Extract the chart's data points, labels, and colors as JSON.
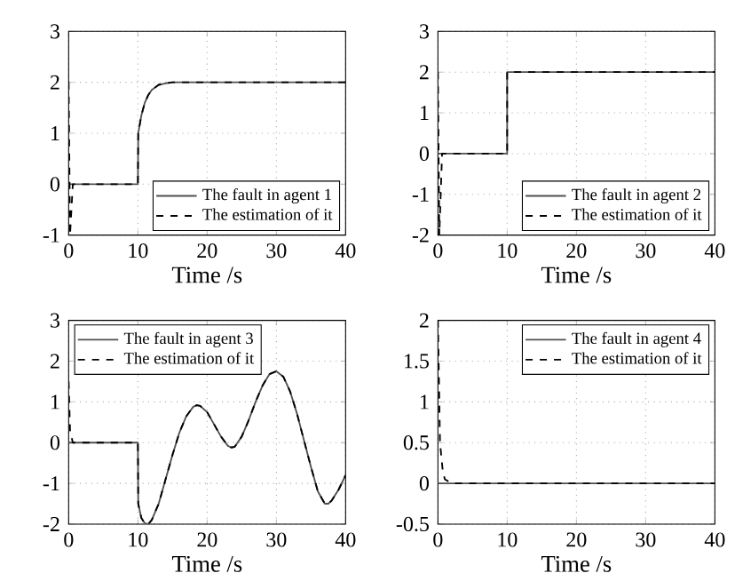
{
  "chart_data": [
    {
      "type": "line",
      "xlabel": "Time /s",
      "xlim": [
        0,
        40
      ],
      "ylim": [
        -1,
        3
      ],
      "xticks": [
        0,
        10,
        20,
        30,
        40
      ],
      "yticks": [
        -1,
        0,
        1,
        2,
        3
      ],
      "grid": true,
      "legend": "bottom right",
      "series": [
        {
          "name": "The fault in agent 1",
          "color": "#505050",
          "line_style": "solid",
          "x": [
            0,
            10,
            10.05,
            10.5,
            11,
            11.5,
            12,
            13,
            14,
            15,
            16,
            40
          ],
          "values": [
            0,
            0,
            1.0,
            1.35,
            1.6,
            1.75,
            1.85,
            1.95,
            1.98,
            2,
            2,
            2
          ]
        },
        {
          "name": "The estimation of it",
          "color": "#000000",
          "line_style": "dashed",
          "x": [
            0,
            0.2,
            0.6,
            10,
            10.05,
            10.5,
            11,
            11.5,
            12,
            13,
            14,
            15,
            16,
            40
          ],
          "values": [
            2,
            -1,
            0,
            0,
            1.0,
            1.35,
            1.6,
            1.75,
            1.85,
            1.95,
            1.98,
            2,
            2,
            2
          ]
        }
      ]
    },
    {
      "type": "line",
      "xlabel": "Time /s",
      "xlim": [
        0,
        40
      ],
      "ylim": [
        -2,
        3
      ],
      "xticks": [
        0,
        10,
        20,
        30,
        40
      ],
      "yticks": [
        -2,
        -1,
        0,
        1,
        2,
        3
      ],
      "grid": true,
      "legend": "bottom right",
      "series": [
        {
          "name": "The fault in agent 2",
          "color": "#505050",
          "line_style": "solid",
          "x": [
            0,
            10,
            10,
            40
          ],
          "values": [
            0,
            0,
            2,
            2
          ]
        },
        {
          "name": "The estimation of it",
          "color": "#000000",
          "line_style": "dashed",
          "x": [
            0,
            0.2,
            0.6,
            10,
            10,
            40
          ],
          "values": [
            2,
            -2,
            0,
            0,
            2,
            2
          ]
        }
      ]
    },
    {
      "type": "line",
      "xlabel": "Time /s",
      "xlim": [
        0,
        40
      ],
      "ylim": [
        -2,
        3
      ],
      "xticks": [
        0,
        10,
        20,
        30,
        40
      ],
      "yticks": [
        -2,
        -1,
        0,
        1,
        2,
        3
      ],
      "grid": true,
      "legend": "top left",
      "series": [
        {
          "name": "The fault in agent 3",
          "color": "#505050",
          "line_style": "solid",
          "x": [
            0,
            10,
            10.05,
            10.5,
            11,
            11.5,
            12,
            13,
            14,
            15,
            16,
            17,
            18,
            18.5,
            19,
            20,
            21,
            22,
            23,
            23.5,
            24,
            25,
            26,
            27,
            28,
            29,
            30,
            31,
            32,
            33,
            34,
            35,
            36,
            37,
            37.5,
            38,
            39,
            40
          ],
          "values": [
            0,
            0,
            -1.5,
            -1.85,
            -1.98,
            -2.0,
            -1.9,
            -1.5,
            -0.9,
            -0.3,
            0.25,
            0.65,
            0.88,
            0.92,
            0.9,
            0.75,
            0.45,
            0.15,
            -0.08,
            -0.12,
            -0.1,
            0.15,
            0.55,
            1.0,
            1.4,
            1.68,
            1.75,
            1.62,
            1.25,
            0.7,
            0.05,
            -0.6,
            -1.2,
            -1.5,
            -1.5,
            -1.42,
            -1.15,
            -0.8
          ]
        },
        {
          "name": "The estimation of it",
          "color": "#000000",
          "line_style": "dashed",
          "x": [
            0,
            0.2,
            0.6,
            10,
            10.05,
            10.5,
            11,
            11.5,
            12,
            13,
            14,
            15,
            16,
            17,
            18,
            18.5,
            19,
            20,
            21,
            22,
            23,
            23.5,
            24,
            25,
            26,
            27,
            28,
            29,
            30,
            31,
            32,
            33,
            34,
            35,
            36,
            37,
            37.5,
            38,
            39,
            40
          ],
          "values": [
            1.5,
            0.3,
            0,
            0,
            -1.5,
            -1.85,
            -1.98,
            -2.0,
            -1.9,
            -1.5,
            -0.9,
            -0.3,
            0.25,
            0.65,
            0.88,
            0.92,
            0.9,
            0.75,
            0.45,
            0.15,
            -0.08,
            -0.12,
            -0.1,
            0.15,
            0.55,
            1.0,
            1.4,
            1.68,
            1.75,
            1.62,
            1.25,
            0.7,
            0.05,
            -0.6,
            -1.2,
            -1.5,
            -1.5,
            -1.42,
            -1.15,
            -0.8
          ]
        }
      ]
    },
    {
      "type": "line",
      "xlabel": "Time /s",
      "xlim": [
        0,
        40
      ],
      "ylim": [
        -0.5,
        2
      ],
      "xticks": [
        0,
        10,
        20,
        30,
        40
      ],
      "yticks": [
        -0.5,
        0,
        0.5,
        1,
        1.5,
        2
      ],
      "grid": true,
      "legend": "top right",
      "series": [
        {
          "name": "The fault in agent 4",
          "color": "#505050",
          "line_style": "solid",
          "x": [
            0,
            40
          ],
          "values": [
            0,
            0
          ]
        },
        {
          "name": "The estimation of it",
          "color": "#000000",
          "line_style": "dashed",
          "x": [
            0,
            0.3,
            0.7,
            1,
            2,
            40
          ],
          "values": [
            2,
            0.5,
            0.15,
            0.05,
            0,
            0
          ]
        }
      ]
    }
  ]
}
